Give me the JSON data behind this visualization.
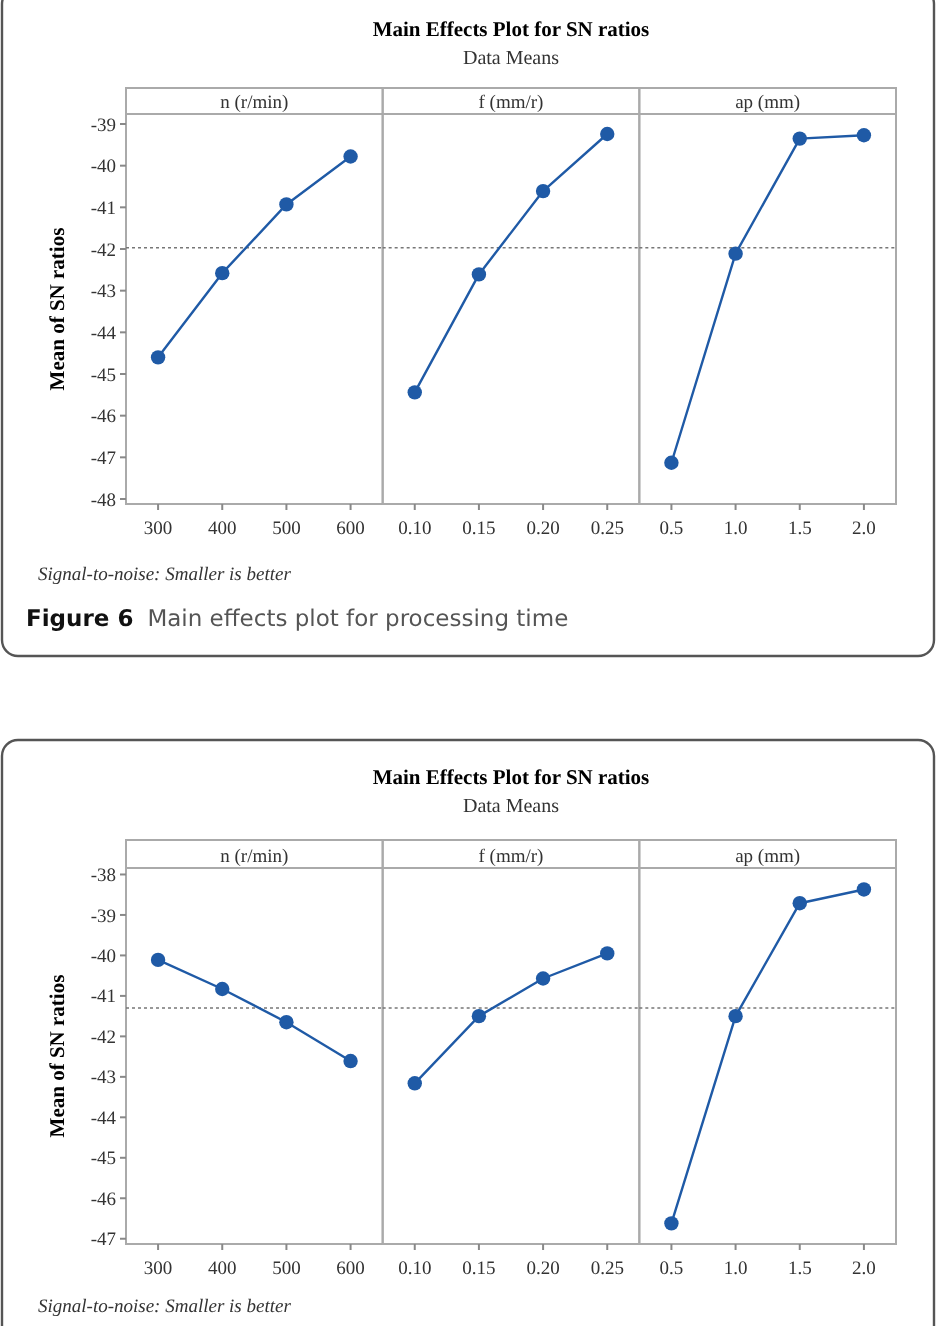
{
  "chart_data": [
    {
      "type": "line",
      "xlabel": "n (r/min)",
      "ylabel": "Mean of SN ratios",
      "categories": [
        "300",
        "400",
        "500",
        "600"
      ],
      "series": [
        {
          "color": "#1f5aa6",
          "values": [
            -44.6,
            -42.58,
            -40.93,
            -39.78
          ]
        }
      ],
      "ylim": [
        -48.12,
        -38.76
      ],
      "yticks": [
        -48,
        -47,
        -46,
        -45,
        -44,
        -43,
        -42,
        -41,
        -40,
        -39
      ],
      "marker": "circle",
      "line_style": "solid",
      "ref_lines": [
        {
          "axis": "y",
          "value": -41.97,
          "color": "#777777",
          "line_style": "dotted"
        }
      ],
      "annotations": [
        "Signal-to-noise: Smaller is better",
        "Figure 6",
        "Main effects plot for processing time"
      ]
    },
    {
      "type": "line",
      "title": "Main Effects Plot for SN ratios",
      "subtitle": "Data Means",
      "xlabel": "f (mm/r)",
      "categories": [
        "0.10",
        "0.15",
        "0.20",
        "0.25"
      ],
      "series": [
        {
          "color": "#1f5aa6",
          "values": [
            -45.44,
            -42.61,
            -40.61,
            -39.24
          ]
        }
      ],
      "ylim": [
        -48.12,
        -38.76
      ],
      "yticks": [
        -48,
        -47,
        -46,
        -45,
        -44,
        -43,
        -42,
        -41,
        -40,
        -39
      ],
      "tick_labels": "x",
      "marker": "circle",
      "line_style": "solid",
      "ref_lines": [
        {
          "axis": "y",
          "value": -41.97,
          "color": "#777777",
          "line_style": "dotted"
        }
      ]
    },
    {
      "type": "line",
      "xlabel": "ap (mm)",
      "categories": [
        "0.5",
        "1.0",
        "1.5",
        "2.0"
      ],
      "series": [
        {
          "color": "#1f5aa6",
          "values": [
            -47.13,
            -42.11,
            -39.35,
            -39.27
          ]
        }
      ],
      "ylim": [
        -48.12,
        -38.76
      ],
      "yticks": [
        -48,
        -47,
        -46,
        -45,
        -44,
        -43,
        -42,
        -41,
        -40,
        -39
      ],
      "tick_labels": "x",
      "marker": "circle",
      "line_style": "solid",
      "ref_lines": [
        {
          "axis": "y",
          "value": -41.97,
          "color": "#777777",
          "line_style": "dotted"
        }
      ]
    },
    {
      "type": "line",
      "xlabel": "n (r/min)",
      "ylabel": "Mean of SN ratios",
      "categories": [
        "300",
        "400",
        "500",
        "600"
      ],
      "series": [
        {
          "color": "#1f5aa6",
          "values": [
            -40.11,
            -40.83,
            -41.65,
            -42.61
          ]
        }
      ],
      "ylim": [
        -47.13,
        -37.84
      ],
      "yticks": [
        -47,
        -46,
        -45,
        -44,
        -43,
        -42,
        -41,
        -40,
        -39,
        -38
      ],
      "marker": "circle",
      "line_style": "solid",
      "ref_lines": [
        {
          "axis": "y",
          "value": -41.3,
          "color": "#777777",
          "line_style": "dotted"
        }
      ],
      "annotations": [
        "Signal-to-noise: Smaller is better"
      ]
    },
    {
      "type": "line",
      "title": "Main Effects Plot for SN ratios",
      "subtitle": "Data Means",
      "xlabel": "f (mm/r)",
      "categories": [
        "0.10",
        "0.15",
        "0.20",
        "0.25"
      ],
      "series": [
        {
          "color": "#1f5aa6",
          "values": [
            -43.16,
            -41.5,
            -40.57,
            -39.95
          ]
        }
      ],
      "ylim": [
        -47.13,
        -37.84
      ],
      "yticks": [
        -47,
        -46,
        -45,
        -44,
        -43,
        -42,
        -41,
        -40,
        -39,
        -38
      ],
      "tick_labels": "x",
      "marker": "circle",
      "line_style": "solid",
      "ref_lines": [
        {
          "axis": "y",
          "value": -41.3,
          "color": "#777777",
          "line_style": "dotted"
        }
      ]
    },
    {
      "type": "line",
      "xlabel": "ap (mm)",
      "categories": [
        "0.5",
        "1.0",
        "1.5",
        "2.0"
      ],
      "series": [
        {
          "color": "#1f5aa6",
          "values": [
            -46.62,
            -41.5,
            -38.71,
            -38.37
          ]
        }
      ],
      "ylim": [
        -47.13,
        -37.84
      ],
      "yticks": [
        -47,
        -46,
        -45,
        -44,
        -43,
        -42,
        -41,
        -40,
        -39,
        -38
      ],
      "tick_labels": "x",
      "marker": "circle",
      "line_style": "solid",
      "ref_lines": [
        {
          "axis": "y",
          "value": -41.3,
          "color": "#777777",
          "line_style": "dotted"
        }
      ]
    }
  ]
}
